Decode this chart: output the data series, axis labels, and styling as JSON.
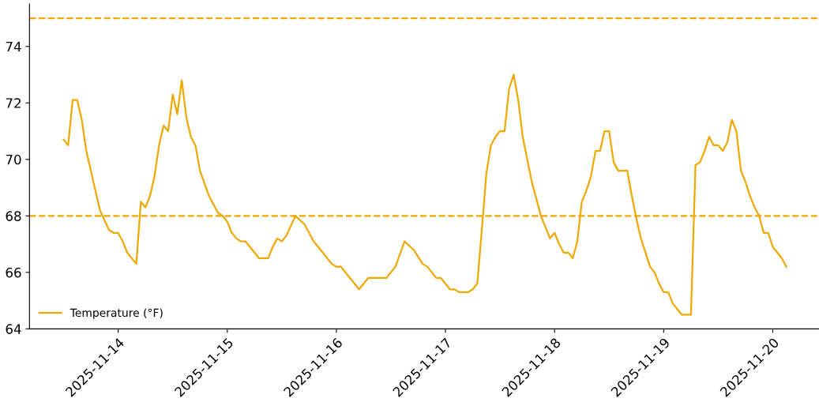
{
  "chart_data": {
    "type": "line",
    "x": [
      "2025-11-13T12:00",
      "2025-11-13T13:00",
      "2025-11-13T14:00",
      "2025-11-13T15:00",
      "2025-11-13T16:00",
      "2025-11-13T17:00",
      "2025-11-13T19:00",
      "2025-11-13T20:00",
      "2025-11-13T22:00",
      "2025-11-13T23:00",
      "2025-11-14T00:00",
      "2025-11-14T01:00",
      "2025-11-14T02:00",
      "2025-11-14T04:00",
      "2025-11-14T05:00",
      "2025-11-14T06:00",
      "2025-11-14T07:00",
      "2025-11-14T08:00",
      "2025-11-14T09:00",
      "2025-11-14T10:00",
      "2025-11-14T11:00",
      "2025-11-14T12:00",
      "2025-11-14T13:00",
      "2025-11-14T14:00",
      "2025-11-14T15:00",
      "2025-11-14T16:00",
      "2025-11-14T17:00",
      "2025-11-14T18:00",
      "2025-11-14T20:00",
      "2025-11-14T22:00",
      "2025-11-14T23:00",
      "2025-11-15T00:00",
      "2025-11-15T01:00",
      "2025-11-15T02:00",
      "2025-11-15T03:00",
      "2025-11-15T04:00",
      "2025-11-15T06:00",
      "2025-11-15T07:00",
      "2025-11-15T09:00",
      "2025-11-15T10:00",
      "2025-11-15T11:00",
      "2025-11-15T12:00",
      "2025-11-15T13:00",
      "2025-11-15T15:00",
      "2025-11-15T17:00",
      "2025-11-15T18:00",
      "2025-11-15T19:00",
      "2025-11-15T21:00",
      "2025-11-15T23:00",
      "2025-11-16T00:00",
      "2025-11-16T01:00",
      "2025-11-16T03:00",
      "2025-11-16T05:00",
      "2025-11-16T07:00",
      "2025-11-16T11:00",
      "2025-11-16T13:00",
      "2025-11-16T15:00",
      "2025-11-16T17:00",
      "2025-11-16T19:00",
      "2025-11-16T20:00",
      "2025-11-16T22:00",
      "2025-11-16T23:00",
      "2025-11-17T01:00",
      "2025-11-17T02:00",
      "2025-11-17T03:00",
      "2025-11-17T05:00",
      "2025-11-17T06:00",
      "2025-11-17T07:00",
      "2025-11-17T08:00",
      "2025-11-17T09:00",
      "2025-11-17T10:00",
      "2025-11-17T11:00",
      "2025-11-17T12:00",
      "2025-11-17T13:00",
      "2025-11-17T14:00",
      "2025-11-17T15:00",
      "2025-11-17T16:00",
      "2025-11-17T17:00",
      "2025-11-17T18:00",
      "2025-11-17T19:00",
      "2025-11-17T20:00",
      "2025-11-17T21:00",
      "2025-11-17T22:00",
      "2025-11-17T23:00",
      "2025-11-18T00:00",
      "2025-11-18T01:00",
      "2025-11-18T02:00",
      "2025-11-18T03:00",
      "2025-11-18T04:00",
      "2025-11-18T05:00",
      "2025-11-18T06:00",
      "2025-11-18T07:00",
      "2025-11-18T08:00",
      "2025-11-18T09:00",
      "2025-11-18T10:00",
      "2025-11-18T11:00",
      "2025-11-18T12:00",
      "2025-11-18T13:00",
      "2025-11-18T14:00",
      "2025-11-18T16:00",
      "2025-11-18T17:00",
      "2025-11-18T18:00",
      "2025-11-18T19:00",
      "2025-11-18T20:00",
      "2025-11-18T21:00",
      "2025-11-18T22:00",
      "2025-11-18T23:00",
      "2025-11-19T00:00",
      "2025-11-19T01:00",
      "2025-11-19T02:00",
      "2025-11-19T04:00",
      "2025-11-19T06:00",
      "2025-11-19T07:00",
      "2025-11-19T08:00",
      "2025-11-19T09:00",
      "2025-11-19T10:00",
      "2025-11-19T11:00",
      "2025-11-19T12:00",
      "2025-11-19T13:00",
      "2025-11-19T14:00",
      "2025-11-19T15:00",
      "2025-11-19T16:00",
      "2025-11-19T17:00",
      "2025-11-19T18:00",
      "2025-11-19T19:00",
      "2025-11-19T20:00",
      "2025-11-19T21:00",
      "2025-11-19T22:00",
      "2025-11-19T23:00",
      "2025-11-20T00:00",
      "2025-11-20T01:00",
      "2025-11-20T02:00",
      "2025-11-20T03:00"
    ],
    "series": [
      {
        "name": "Temperature (°F)",
        "color": "#f0a800",
        "values": [
          70.7,
          70.5,
          72.1,
          72.1,
          71.4,
          70.3,
          68.9,
          68.2,
          67.5,
          67.4,
          67.4,
          67.1,
          66.7,
          66.3,
          68.5,
          68.3,
          68.7,
          69.4,
          70.5,
          71.2,
          71.0,
          72.3,
          71.6,
          72.8,
          71.5,
          70.8,
          70.5,
          69.6,
          68.7,
          68.1,
          68.0,
          67.8,
          67.4,
          67.2,
          67.1,
          67.1,
          66.7,
          66.5,
          66.5,
          66.9,
          67.2,
          67.1,
          67.3,
          68.0,
          67.7,
          67.4,
          67.1,
          66.7,
          66.3,
          66.2,
          66.2,
          65.8,
          65.4,
          65.8,
          65.8,
          66.2,
          67.1,
          66.8,
          66.3,
          66.2,
          65.8,
          65.8,
          65.4,
          65.4,
          65.3,
          65.3,
          65.4,
          65.6,
          67.5,
          69.5,
          70.5,
          70.8,
          71.0,
          71.0,
          72.5,
          73.0,
          72.1,
          70.8,
          70.0,
          69.2,
          68.6,
          68.0,
          67.6,
          67.2,
          67.4,
          67.0,
          66.7,
          66.7,
          66.5,
          67.1,
          68.5,
          68.9,
          69.4,
          70.3,
          70.3,
          71.0,
          71.0,
          69.9,
          69.6,
          69.6,
          68.7,
          67.9,
          67.2,
          66.7,
          66.2,
          66.0,
          65.6,
          65.3,
          65.3,
          64.9,
          64.5,
          64.5,
          69.8,
          69.9,
          70.3,
          70.8,
          70.5,
          70.5,
          70.3,
          70.6,
          71.4,
          71.0,
          69.6,
          69.2,
          68.7,
          68.3,
          68.0,
          67.4,
          67.4,
          66.9,
          66.7,
          66.5,
          66.2
        ]
      }
    ],
    "xlim": [
      "2025-11-13T04:30",
      "2025-11-20T10:10"
    ],
    "xticks": [
      {
        "value": "2025-11-14",
        "label": "2025-11-14"
      },
      {
        "value": "2025-11-15",
        "label": "2025-11-15"
      },
      {
        "value": "2025-11-16",
        "label": "2025-11-16"
      },
      {
        "value": "2025-11-17",
        "label": "2025-11-17"
      },
      {
        "value": "2025-11-18",
        "label": "2025-11-18"
      },
      {
        "value": "2025-11-19",
        "label": "2025-11-19"
      },
      {
        "value": "2025-11-20",
        "label": "2025-11-20"
      }
    ],
    "ylim": [
      64,
      75.5
    ],
    "yticks": [
      64,
      66,
      68,
      70,
      72,
      74
    ],
    "ref_lines": [
      {
        "axis": "y",
        "value": 75,
        "label": null,
        "color": "#f0a800",
        "line_style": "dashed"
      },
      {
        "axis": "y",
        "value": 68,
        "label": null,
        "color": "#f0a800",
        "line_style": "dashed"
      }
    ],
    "legend": "bottom left",
    "grid": false,
    "marker": "none",
    "line_style": "solid"
  }
}
